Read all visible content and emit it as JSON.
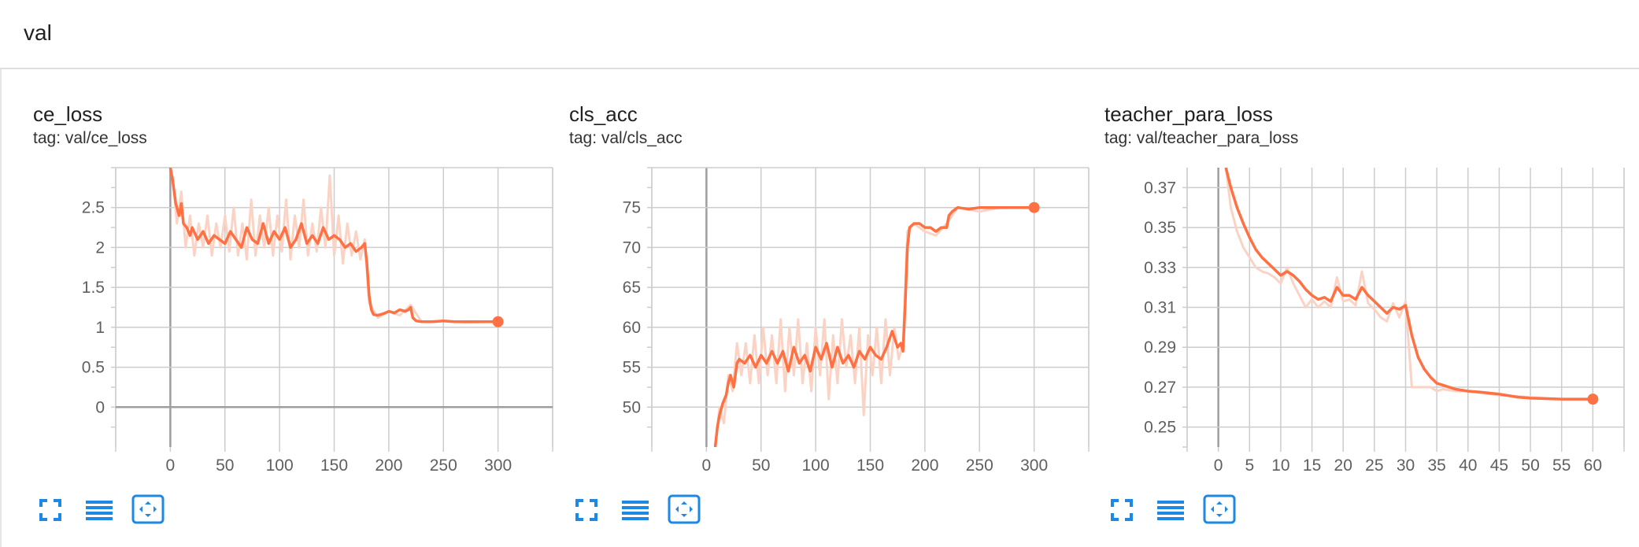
{
  "section": {
    "title": "val"
  },
  "colors": {
    "line": "#ff7043",
    "line_raw": "#fbd3c5",
    "grid": "#cdcdcd",
    "axis": "#9e9e9e",
    "icon": "#1e88e5"
  },
  "toolbar_icons": [
    "fullscreen-icon",
    "toggle-log-scale-icon",
    "fit-domain-icon"
  ],
  "chart_data": [
    {
      "type": "line",
      "title": "ce_loss",
      "tag": "tag: val/ce_loss",
      "xlim": [
        -50,
        350
      ],
      "ylim": [
        -0.5,
        3.0
      ],
      "xticks": [
        0,
        50,
        100,
        150,
        200,
        250,
        300
      ],
      "xtick_labels": [
        "0",
        "50",
        "100",
        "150",
        "200",
        "250",
        "300"
      ],
      "yticks": [
        0,
        0.5,
        1,
        1.5,
        2,
        2.5
      ],
      "ytick_labels": [
        "0",
        "0.5",
        "1",
        "1.5",
        "2",
        "2.5"
      ],
      "grid": true,
      "series": [
        {
          "role": "smoothed",
          "x": [
            0,
            2,
            5,
            8,
            10,
            12,
            15,
            18,
            20,
            25,
            30,
            35,
            40,
            45,
            50,
            55,
            60,
            65,
            70,
            75,
            80,
            85,
            90,
            95,
            100,
            105,
            110,
            115,
            120,
            125,
            130,
            135,
            140,
            145,
            150,
            155,
            160,
            165,
            170,
            175,
            178,
            180,
            182,
            184,
            186,
            190,
            195,
            200,
            205,
            210,
            215,
            218,
            220,
            222,
            225,
            230,
            240,
            250,
            260,
            270,
            280,
            290,
            300
          ],
          "y": [
            3.0,
            2.85,
            2.55,
            2.4,
            2.55,
            2.3,
            2.25,
            2.15,
            2.25,
            2.1,
            2.2,
            2.05,
            2.15,
            2.1,
            2.05,
            2.2,
            2.1,
            2.0,
            2.25,
            2.1,
            2.05,
            2.3,
            2.05,
            2.2,
            2.1,
            2.25,
            2.0,
            2.1,
            2.3,
            2.05,
            2.15,
            2.05,
            2.25,
            2.1,
            2.15,
            2.1,
            2.0,
            2.05,
            1.95,
            2.0,
            2.05,
            1.8,
            1.4,
            1.22,
            1.16,
            1.15,
            1.17,
            1.2,
            1.18,
            1.22,
            1.2,
            1.22,
            1.25,
            1.12,
            1.08,
            1.07,
            1.07,
            1.08,
            1.07,
            1.07,
            1.07,
            1.07,
            1.07
          ]
        },
        {
          "role": "raw",
          "x": [
            2,
            6,
            10,
            14,
            18,
            22,
            26,
            30,
            34,
            38,
            42,
            46,
            50,
            54,
            58,
            62,
            66,
            70,
            74,
            78,
            82,
            86,
            90,
            94,
            98,
            102,
            106,
            110,
            114,
            118,
            122,
            126,
            130,
            134,
            138,
            142,
            146,
            150,
            154,
            158,
            162,
            166,
            170,
            174,
            178,
            182,
            190,
            200,
            210,
            220,
            230,
            250,
            270,
            300
          ],
          "y": [
            2.9,
            2.3,
            2.7,
            2.0,
            2.4,
            1.9,
            2.3,
            2.0,
            2.4,
            1.9,
            2.3,
            2.0,
            2.4,
            1.95,
            2.5,
            1.9,
            2.3,
            1.85,
            2.6,
            1.9,
            2.4,
            2.0,
            2.5,
            1.9,
            2.4,
            1.95,
            2.6,
            1.85,
            2.4,
            2.0,
            2.6,
            1.9,
            2.3,
            1.95,
            2.5,
            2.0,
            2.9,
            1.9,
            2.4,
            1.8,
            2.3,
            1.9,
            2.2,
            1.85,
            2.1,
            1.3,
            1.12,
            1.2,
            1.15,
            1.28,
            1.07,
            1.08,
            1.06,
            1.07
          ]
        }
      ]
    },
    {
      "type": "line",
      "title": "cls_acc",
      "tag": "tag: val/cls_acc",
      "xlim": [
        -50,
        350
      ],
      "ylim": [
        45,
        80
      ],
      "xticks": [
        0,
        50,
        100,
        150,
        200,
        250,
        300
      ],
      "xtick_labels": [
        "0",
        "50",
        "100",
        "150",
        "200",
        "250",
        "300"
      ],
      "yticks": [
        50,
        55,
        60,
        65,
        70,
        75
      ],
      "ytick_labels": [
        "50",
        "55",
        "60",
        "65",
        "70",
        "75"
      ],
      "grid": true,
      "series": [
        {
          "role": "smoothed",
          "x": [
            8,
            10,
            12,
            15,
            18,
            20,
            22,
            25,
            28,
            30,
            35,
            40,
            45,
            50,
            55,
            60,
            65,
            70,
            75,
            80,
            85,
            90,
            95,
            100,
            105,
            110,
            115,
            120,
            125,
            130,
            135,
            140,
            145,
            150,
            155,
            160,
            165,
            170,
            175,
            178,
            180,
            182,
            184,
            186,
            190,
            195,
            200,
            205,
            210,
            215,
            220,
            222,
            225,
            230,
            240,
            250,
            260,
            270,
            280,
            290,
            300
          ],
          "y": [
            45,
            47.5,
            49,
            50.5,
            51.5,
            53,
            54,
            52.5,
            55.5,
            56,
            55.5,
            56.5,
            55,
            56.5,
            55.5,
            57,
            55.5,
            57,
            54.5,
            57.5,
            55.5,
            56.5,
            54.5,
            57.5,
            56,
            58,
            55,
            57.5,
            55.5,
            56.5,
            55,
            57,
            56,
            57.5,
            56.5,
            56,
            57.5,
            59.5,
            57.5,
            58,
            57,
            63,
            70,
            72.5,
            73,
            73,
            72.5,
            72.5,
            72,
            72.5,
            72.5,
            74,
            74.5,
            75,
            74.8,
            75,
            75,
            75,
            75,
            75,
            75
          ]
        },
        {
          "role": "raw",
          "x": [
            8,
            12,
            16,
            20,
            24,
            28,
            32,
            36,
            40,
            44,
            48,
            52,
            56,
            60,
            64,
            68,
            72,
            76,
            80,
            84,
            88,
            92,
            96,
            100,
            104,
            108,
            112,
            116,
            120,
            124,
            128,
            132,
            136,
            140,
            144,
            148,
            152,
            156,
            160,
            164,
            168,
            172,
            176,
            180,
            184,
            190,
            200,
            210,
            220,
            230,
            250,
            270,
            300
          ],
          "y": [
            45,
            50,
            48,
            54,
            52,
            58,
            54,
            58,
            53,
            59,
            53,
            60,
            54,
            59,
            53,
            61,
            52,
            60,
            54,
            61,
            53,
            58,
            52,
            60,
            54,
            61,
            51,
            59,
            53,
            61,
            55,
            59,
            53,
            60,
            49,
            59,
            54,
            60,
            53,
            61,
            54,
            60,
            56,
            58,
            72,
            73,
            72,
            71.5,
            73,
            75,
            74.5,
            75,
            75
          ]
        }
      ]
    },
    {
      "type": "line",
      "title": "teacher_para_loss",
      "tag": "tag: val/teacher_para_loss",
      "xlim": [
        -5,
        65
      ],
      "ylim": [
        0.24,
        0.38
      ],
      "xticks": [
        0,
        5,
        10,
        15,
        20,
        25,
        30,
        35,
        40,
        45,
        50,
        55,
        60
      ],
      "xtick_labels": [
        "0",
        "5",
        "10",
        "15",
        "20",
        "25",
        "30",
        "35",
        "40",
        "45",
        "50",
        "55",
        "60"
      ],
      "yticks": [
        0.25,
        0.27,
        0.29,
        0.31,
        0.33,
        0.35,
        0.37
      ],
      "ytick_labels": [
        "0.25",
        "0.27",
        "0.29",
        "0.31",
        "0.33",
        "0.35",
        "0.37"
      ],
      "grid": true,
      "series": [
        {
          "role": "smoothed",
          "x": [
            1.2,
            2,
            3,
            4,
            5,
            6,
            7,
            8,
            9,
            10,
            11,
            12,
            13,
            14,
            15,
            16,
            17,
            18,
            19,
            20,
            21,
            22,
            23,
            24,
            25,
            26,
            27,
            28,
            29,
            30,
            31,
            32,
            33,
            34,
            35,
            36,
            38,
            40,
            42,
            45,
            48,
            50,
            55,
            60
          ],
          "y": [
            0.38,
            0.37,
            0.36,
            0.352,
            0.345,
            0.339,
            0.335,
            0.332,
            0.329,
            0.326,
            0.328,
            0.326,
            0.323,
            0.319,
            0.316,
            0.314,
            0.315,
            0.313,
            0.32,
            0.316,
            0.316,
            0.314,
            0.32,
            0.316,
            0.313,
            0.31,
            0.307,
            0.31,
            0.309,
            0.311,
            0.296,
            0.285,
            0.279,
            0.275,
            0.272,
            0.271,
            0.269,
            0.268,
            0.2675,
            0.2665,
            0.265,
            0.2645,
            0.264,
            0.264
          ]
        },
        {
          "role": "raw",
          "x": [
            1.2,
            2,
            3,
            4,
            5,
            6,
            7,
            8,
            9,
            10,
            11,
            12,
            13,
            14,
            15,
            16,
            17,
            18,
            19,
            20,
            21,
            22,
            23,
            24,
            25,
            26,
            27,
            28,
            29,
            30,
            31,
            32,
            33,
            34,
            35,
            36,
            38,
            40,
            45,
            50,
            55,
            60
          ],
          "y": [
            0.38,
            0.36,
            0.348,
            0.34,
            0.335,
            0.33,
            0.328,
            0.327,
            0.325,
            0.322,
            0.33,
            0.322,
            0.316,
            0.31,
            0.314,
            0.31,
            0.313,
            0.31,
            0.325,
            0.313,
            0.314,
            0.311,
            0.328,
            0.312,
            0.309,
            0.305,
            0.303,
            0.312,
            0.305,
            0.313,
            0.27,
            0.27,
            0.27,
            0.27,
            0.268,
            0.269,
            0.268,
            0.268,
            0.266,
            0.265,
            0.264,
            0.264
          ]
        }
      ]
    }
  ]
}
